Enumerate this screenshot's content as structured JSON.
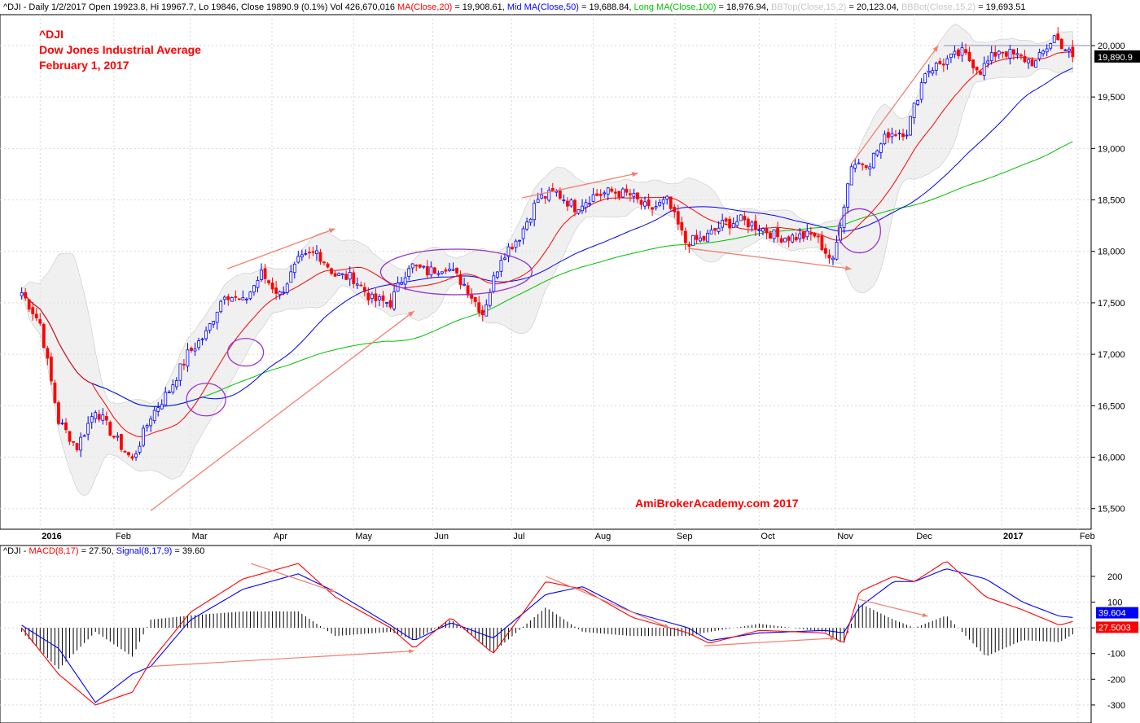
{
  "header": {
    "price_prefix": "^DJI - Daily 1/2/2017 Open 19923.8, Hi 19967.7, Lo 19846, Close 19890.9 (0.1%) Vol 426,670,016",
    "ma20_label": "MA(Close,20)",
    "ma20_value": "= 19,908.61,",
    "ma50_label": "Mid MA(Close,50)",
    "ma50_value": "= 19,688.84,",
    "ma100_label": "Long MA(Close,100)",
    "ma100_value": "= 18,976.94,",
    "bbtop_label": "BBTop(Close,15,2)",
    "bbtop_value": "= 20,123.04,",
    "bbbot_label": "BBBot(Close,15,2)",
    "bbbot_value": "= 19,693.51",
    "macd_prefix": "^DJI -",
    "macd_label": "MACD(8,17)",
    "macd_value": "= 27.50,",
    "signal_label": "Signal(8,17,9)",
    "signal_value": "= 39.60"
  },
  "annotation": {
    "ticker": "^DJI",
    "name": "Dow Jones Industrial Average",
    "date": "February 1, 2017",
    "watermark": "AmiBrokerAcademy.com  2017"
  },
  "colors": {
    "up": "#0000ff",
    "down": "#ff0000",
    "ma20": "#ff0000",
    "ma50": "#0000ff",
    "ma100": "#00c000",
    "bb_fill": "#e6e6e6",
    "annotation": "#ff0000",
    "circle": "#9933cc",
    "trend_arrow": "#f08070"
  },
  "chart_data": [
    {
      "type": "candlestick",
      "title": "^DJI",
      "ylim": [
        15300,
        20300
      ],
      "y_ticks": [
        "15,500",
        "16,000",
        "16,500",
        "17,000",
        "17,500",
        "18,000",
        "18,500",
        "19,000",
        "19,500",
        "20,000"
      ],
      "x_labels": [
        "2016",
        "Feb",
        "Mar",
        "Apr",
        "May",
        "Jun",
        "Jul",
        "Aug",
        "Sep",
        "Oct",
        "Nov",
        "Dec",
        "2017",
        "Feb"
      ],
      "last_close_label": "19,890.9",
      "reference_level": 20000,
      "closes_weekly": [
        {
          "date": "2015-12-28",
          "close": 17600
        },
        {
          "date": "2016-01-04",
          "close": 17300
        },
        {
          "date": "2016-01-11",
          "close": 16350
        },
        {
          "date": "2016-01-18",
          "close": 16100
        },
        {
          "date": "2016-01-25",
          "close": 16470
        },
        {
          "date": "2016-02-01",
          "close": 16200
        },
        {
          "date": "2016-02-08",
          "close": 15970
        },
        {
          "date": "2016-02-15",
          "close": 16400
        },
        {
          "date": "2016-02-22",
          "close": 16650
        },
        {
          "date": "2016-02-29",
          "close": 17000
        },
        {
          "date": "2016-03-07",
          "close": 17200
        },
        {
          "date": "2016-03-14",
          "close": 17600
        },
        {
          "date": "2016-03-21",
          "close": 17500
        },
        {
          "date": "2016-03-28",
          "close": 17780
        },
        {
          "date": "2016-04-04",
          "close": 17580
        },
        {
          "date": "2016-04-11",
          "close": 17900
        },
        {
          "date": "2016-04-18",
          "close": 18000
        },
        {
          "date": "2016-04-25",
          "close": 17770
        },
        {
          "date": "2016-05-02",
          "close": 17740
        },
        {
          "date": "2016-05-09",
          "close": 17530
        },
        {
          "date": "2016-05-16",
          "close": 17500
        },
        {
          "date": "2016-05-23",
          "close": 17870
        },
        {
          "date": "2016-05-30",
          "close": 17800
        },
        {
          "date": "2016-06-06",
          "close": 17860
        },
        {
          "date": "2016-06-13",
          "close": 17680
        },
        {
          "date": "2016-06-20",
          "close": 17400
        },
        {
          "date": "2016-06-27",
          "close": 17950
        },
        {
          "date": "2016-07-04",
          "close": 18150
        },
        {
          "date": "2016-07-11",
          "close": 18510
        },
        {
          "date": "2016-07-18",
          "close": 18570
        },
        {
          "date": "2016-07-25",
          "close": 18430
        },
        {
          "date": "2016-08-01",
          "close": 18540
        },
        {
          "date": "2016-08-08",
          "close": 18580
        },
        {
          "date": "2016-08-15",
          "close": 18550
        },
        {
          "date": "2016-08-22",
          "close": 18400
        },
        {
          "date": "2016-08-29",
          "close": 18490
        },
        {
          "date": "2016-09-05",
          "close": 18090
        },
        {
          "date": "2016-09-12",
          "close": 18120
        },
        {
          "date": "2016-09-19",
          "close": 18260
        },
        {
          "date": "2016-09-26",
          "close": 18300
        },
        {
          "date": "2016-10-03",
          "close": 18240
        },
        {
          "date": "2016-10-10",
          "close": 18140
        },
        {
          "date": "2016-10-17",
          "close": 18140
        },
        {
          "date": "2016-10-24",
          "close": 18160
        },
        {
          "date": "2016-10-31",
          "close": 17890
        },
        {
          "date": "2016-11-07",
          "close": 18850
        },
        {
          "date": "2016-11-14",
          "close": 18870
        },
        {
          "date": "2016-11-21",
          "close": 19150
        },
        {
          "date": "2016-11-28",
          "close": 19170
        },
        {
          "date": "2016-12-05",
          "close": 19750
        },
        {
          "date": "2016-12-12",
          "close": 19840
        },
        {
          "date": "2016-12-19",
          "close": 19930
        },
        {
          "date": "2016-12-26",
          "close": 19760
        },
        {
          "date": "2017-01-02",
          "close": 19960
        },
        {
          "date": "2017-01-09",
          "close": 19890
        },
        {
          "date": "2017-01-16",
          "close": 19830
        },
        {
          "date": "2017-01-23",
          "close": 20090
        },
        {
          "date": "2017-01-30",
          "close": 19890
        }
      ]
    },
    {
      "type": "line",
      "title": "MACD(8,17)",
      "ylim": [
        -370,
        320
      ],
      "y_ticks": [
        "200",
        "100",
        "0",
        "-100",
        "-200",
        "-300"
      ],
      "macd_label": "27.5003",
      "signal_label": "39.604",
      "series": [
        {
          "name": "MACD(8,17)",
          "values": [
            {
              "date": "2015-12-28",
              "v": 0
            },
            {
              "date": "2016-01-11",
              "v": -180
            },
            {
              "date": "2016-01-25",
              "v": -300
            },
            {
              "date": "2016-02-08",
              "v": -250
            },
            {
              "date": "2016-02-15",
              "v": -130
            },
            {
              "date": "2016-03-01",
              "v": 60
            },
            {
              "date": "2016-03-21",
              "v": 190
            },
            {
              "date": "2016-04-11",
              "v": 250
            },
            {
              "date": "2016-04-25",
              "v": 120
            },
            {
              "date": "2016-05-16",
              "v": 0
            },
            {
              "date": "2016-05-25",
              "v": -80
            },
            {
              "date": "2016-06-08",
              "v": 40
            },
            {
              "date": "2016-06-24",
              "v": -100
            },
            {
              "date": "2016-07-14",
              "v": 180
            },
            {
              "date": "2016-07-28",
              "v": 150
            },
            {
              "date": "2016-08-16",
              "v": 40
            },
            {
              "date": "2016-09-06",
              "v": -20
            },
            {
              "date": "2016-09-14",
              "v": -60
            },
            {
              "date": "2016-10-03",
              "v": -10
            },
            {
              "date": "2016-10-28",
              "v": -20
            },
            {
              "date": "2016-11-04",
              "v": -60
            },
            {
              "date": "2016-11-10",
              "v": 140
            },
            {
              "date": "2016-11-23",
              "v": 200
            },
            {
              "date": "2016-12-01",
              "v": 180
            },
            {
              "date": "2016-12-13",
              "v": 260
            },
            {
              "date": "2016-12-28",
              "v": 120
            },
            {
              "date": "2017-01-11",
              "v": 70
            },
            {
              "date": "2017-01-25",
              "v": 10
            },
            {
              "date": "2017-01-31",
              "v": 27.5
            }
          ]
        },
        {
          "name": "Signal(8,17,9)",
          "values": [
            {
              "date": "2015-12-28",
              "v": 10
            },
            {
              "date": "2016-01-11",
              "v": -80
            },
            {
              "date": "2016-01-25",
              "v": -290
            },
            {
              "date": "2016-02-08",
              "v": -180
            },
            {
              "date": "2016-02-15",
              "v": -150
            },
            {
              "date": "2016-03-01",
              "v": 30
            },
            {
              "date": "2016-03-21",
              "v": 150
            },
            {
              "date": "2016-04-11",
              "v": 210
            },
            {
              "date": "2016-04-25",
              "v": 140
            },
            {
              "date": "2016-05-16",
              "v": 10
            },
            {
              "date": "2016-05-25",
              "v": -50
            },
            {
              "date": "2016-06-08",
              "v": 20
            },
            {
              "date": "2016-06-24",
              "v": -40
            },
            {
              "date": "2016-07-14",
              "v": 130
            },
            {
              "date": "2016-07-28",
              "v": 160
            },
            {
              "date": "2016-08-16",
              "v": 60
            },
            {
              "date": "2016-09-06",
              "v": 0
            },
            {
              "date": "2016-09-14",
              "v": -50
            },
            {
              "date": "2016-10-03",
              "v": -20
            },
            {
              "date": "2016-10-28",
              "v": -10
            },
            {
              "date": "2016-11-04",
              "v": -20
            },
            {
              "date": "2016-11-10",
              "v": 80
            },
            {
              "date": "2016-11-23",
              "v": 180
            },
            {
              "date": "2016-12-01",
              "v": 180
            },
            {
              "date": "2016-12-13",
              "v": 230
            },
            {
              "date": "2016-12-28",
              "v": 190
            },
            {
              "date": "2017-01-11",
              "v": 100
            },
            {
              "date": "2017-01-25",
              "v": 45
            },
            {
              "date": "2017-01-31",
              "v": 39.6
            }
          ]
        }
      ]
    }
  ]
}
